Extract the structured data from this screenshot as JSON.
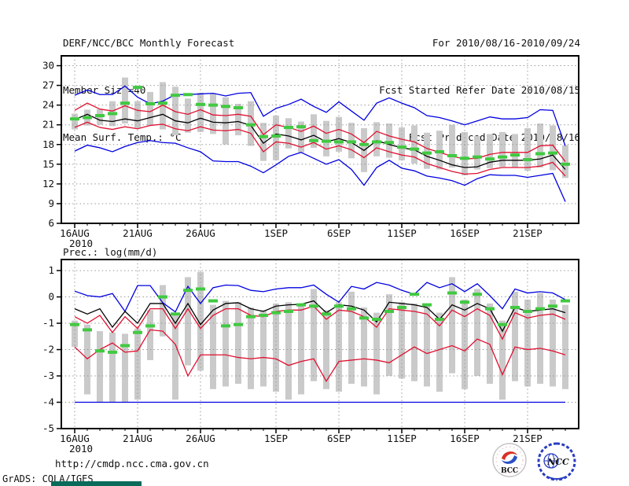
{
  "header": {
    "title": "DERF/NCC/BCC Monthly Forecast",
    "member_size": "Member Size=40",
    "for_range": "For 2010/08/16-2010/09/24",
    "fcst_started": "Fcst Started Refer Date 2010/08/15",
    "fcst_produced": "Fcst Produced Date 2010/08/16"
  },
  "footer": {
    "url": "http://cmdp.ncc.cma.gov.cn",
    "grads_credit": "GrADS: COLA/IGES",
    "accent_bar_color": "#0a6b5a",
    "logos": [
      {
        "name": "bcc-logo",
        "label": "BCC",
        "color": "#1b2d7e",
        "red": "#d93025",
        "blue": "#2b50c5"
      },
      {
        "name": "ncc-logo",
        "label": "NCC",
        "color": "#2a3cc0"
      }
    ]
  },
  "colors": {
    "envelope": "#0000e0",
    "quartile": "#e01030",
    "mean": "#000000",
    "observation": "#41c941",
    "spread_bar": "#cacaca",
    "grid": "#999999",
    "frame": "#000000"
  },
  "chart_data": [
    {
      "type": "line",
      "title": "Mean Surf. Temp.: °C",
      "days": 40,
      "ylim": [
        6,
        31.5
      ],
      "yticks": [
        6,
        9,
        12,
        15,
        18,
        21,
        24,
        27,
        30
      ],
      "grid": true,
      "xticks": [
        {
          "day": 0,
          "label": "16AUG",
          "sublabel": "2010"
        },
        {
          "day": 5,
          "label": "21AUG"
        },
        {
          "day": 10,
          "label": "26AUG"
        },
        {
          "day": 16,
          "label": "1SEP"
        },
        {
          "day": 21,
          "label": "6SEP"
        },
        {
          "day": 26,
          "label": "11SEP"
        },
        {
          "day": 31,
          "label": "16SEP"
        },
        {
          "day": 36,
          "label": "21SEP"
        }
      ],
      "series": [
        {
          "name": "ensemble-max",
          "color": "#0000e0",
          "values": [
            25.5,
            26.3,
            25.6,
            25.6,
            26.9,
            25.2,
            24.2,
            24.6,
            25.6,
            25.6,
            25.7,
            25.8,
            25.4,
            25.8,
            25.9,
            22.3,
            23.5,
            24.1,
            24.9,
            23.8,
            22.9,
            24.5,
            23.1,
            21.7,
            24.3,
            25.1,
            24.3,
            23.6,
            22.4,
            22.1,
            21.6,
            21.0,
            21.6,
            22.2,
            21.9,
            21.9,
            22.1,
            23.3,
            23.2,
            17.8
          ]
        },
        {
          "name": "upper-quartile",
          "color": "#e01030",
          "values": [
            23.2,
            24.3,
            23.4,
            23.1,
            23.9,
            23.2,
            23.0,
            24.0,
            23.0,
            22.6,
            23.3,
            22.5,
            22.4,
            22.6,
            22.3,
            19.5,
            21.0,
            20.6,
            20.0,
            20.8,
            19.7,
            20.3,
            19.6,
            18.3,
            20.0,
            19.3,
            18.8,
            18.4,
            17.4,
            16.8,
            16.2,
            15.8,
            15.9,
            16.5,
            16.8,
            16.8,
            16.8,
            17.8,
            17.9,
            15.4
          ]
        },
        {
          "name": "lower-quartile",
          "color": "#e01030",
          "values": [
            20.6,
            21.4,
            20.6,
            20.3,
            20.7,
            20.4,
            20.9,
            21.1,
            20.4,
            20.1,
            20.7,
            20.2,
            20.1,
            20.3,
            19.7,
            16.9,
            18.4,
            18.2,
            17.6,
            18.3,
            17.3,
            17.8,
            17.2,
            16.0,
            17.5,
            16.9,
            16.4,
            16.1,
            15.1,
            14.5,
            13.9,
            13.5,
            13.6,
            14.2,
            14.5,
            14.5,
            14.5,
            14.7,
            15.3,
            13.2
          ]
        },
        {
          "name": "ensemble-min",
          "color": "#0000e0",
          "values": [
            17.0,
            17.9,
            17.5,
            16.9,
            17.7,
            18.3,
            18.6,
            18.3,
            18.2,
            17.5,
            16.9,
            15.5,
            15.4,
            15.4,
            14.7,
            13.7,
            14.9,
            16.2,
            16.8,
            15.9,
            15.0,
            15.7,
            14.2,
            11.8,
            14.5,
            15.6,
            14.4,
            14.0,
            13.2,
            12.9,
            12.5,
            11.8,
            12.8,
            13.4,
            13.3,
            13.3,
            13.0,
            13.3,
            13.6,
            9.3
          ]
        },
        {
          "name": "ensemble-mean",
          "color": "#000000",
          "values": [
            21.8,
            22.6,
            21.7,
            21.5,
            21.9,
            21.6,
            22.1,
            22.6,
            21.6,
            21.3,
            22.0,
            21.4,
            21.3,
            21.5,
            20.9,
            18.2,
            19.6,
            19.3,
            18.7,
            19.4,
            18.4,
            18.9,
            18.3,
            17.1,
            18.6,
            18.0,
            17.5,
            17.2,
            16.2,
            15.6,
            14.9,
            14.5,
            14.6,
            15.3,
            15.6,
            15.6,
            15.6,
            15.8,
            16.4,
            14.2
          ]
        }
      ],
      "observation": {
        "name": "observation",
        "color": "#41c941",
        "values": [
          21.9,
          22.1,
          22.4,
          22.7,
          24.3,
          26.7,
          24.2,
          24.3,
          25.5,
          25.6,
          24.1,
          24.0,
          23.8,
          23.6,
          21.0,
          19.2,
          19.3,
          20.6,
          20.7,
          18.6,
          18.5,
          18.4,
          18.4,
          18.0,
          18.4,
          18.3,
          17.6,
          17.3,
          16.7,
          16.9,
          16.3,
          15.9,
          16.1,
          15.8,
          16.1,
          16.4,
          15.7,
          16.6,
          16.7,
          15.0
        ]
      },
      "bars": {
        "name": "ensemble-spread",
        "color": "#cacaca",
        "ranges": [
          [
            20.3,
            22.7
          ],
          [
            20.9,
            23.3
          ],
          [
            21.0,
            23.4
          ],
          [
            20.8,
            24.6
          ],
          [
            21.2,
            28.2
          ],
          [
            20.5,
            24.6
          ],
          [
            20.9,
            26.0
          ],
          [
            20.3,
            27.5
          ],
          [
            19.4,
            26.8
          ],
          [
            19.8,
            25.0
          ],
          [
            19.9,
            25.9
          ],
          [
            19.6,
            25.8
          ],
          [
            18.0,
            25.2
          ],
          [
            19.4,
            24.2
          ],
          [
            17.8,
            24.6
          ],
          [
            15.5,
            21.3
          ],
          [
            15.6,
            22.4
          ],
          [
            17.4,
            22.0
          ],
          [
            16.8,
            21.5
          ],
          [
            17.5,
            22.6
          ],
          [
            16.2,
            21.6
          ],
          [
            16.9,
            22.2
          ],
          [
            15.9,
            21.3
          ],
          [
            13.8,
            20.5
          ],
          [
            16.2,
            21.4
          ],
          [
            16.0,
            21.2
          ],
          [
            15.6,
            20.6
          ],
          [
            15.1,
            20.9
          ],
          [
            14.3,
            19.8
          ],
          [
            14.2,
            20.1
          ],
          [
            14.5,
            21.0
          ],
          [
            13.3,
            19.9
          ],
          [
            14.2,
            19.3
          ],
          [
            14.4,
            19.6
          ],
          [
            14.6,
            19.9
          ],
          [
            14.5,
            19.6
          ],
          [
            14.0,
            20.5
          ],
          [
            14.5,
            21.2
          ],
          [
            14.1,
            20.9
          ],
          [
            12.9,
            17.9
          ]
        ]
      }
    },
    {
      "type": "line",
      "title": "Prec.: log(mm/d)",
      "days": 40,
      "ylim": [
        -5,
        1.42
      ],
      "yticks": [
        -5,
        -4,
        -3,
        -2,
        -1,
        0,
        1
      ],
      "grid": true,
      "xticks": [
        {
          "day": 0,
          "label": "16AUG",
          "sublabel": "2010"
        },
        {
          "day": 5,
          "label": "21AUG"
        },
        {
          "day": 10,
          "label": "26AUG"
        },
        {
          "day": 16,
          "label": "1SEP"
        },
        {
          "day": 21,
          "label": "6SEP"
        },
        {
          "day": 26,
          "label": "11SEP"
        },
        {
          "day": 31,
          "label": "16SEP"
        },
        {
          "day": 36,
          "label": "21SEP"
        }
      ],
      "series": [
        {
          "name": "ensemble-max",
          "color": "#0000e0",
          "values": [
            0.22,
            0.05,
            0.0,
            0.13,
            -0.55,
            0.43,
            0.43,
            -0.22,
            -0.57,
            0.4,
            -0.25,
            0.35,
            0.45,
            0.43,
            0.25,
            0.2,
            0.3,
            0.35,
            0.35,
            0.45,
            0.1,
            -0.2,
            0.4,
            0.3,
            0.55,
            0.45,
            0.25,
            0.1,
            0.55,
            0.35,
            0.5,
            0.2,
            0.5,
            0.05,
            -0.45,
            0.3,
            0.15,
            0.2,
            0.15,
            -0.1
          ]
        },
        {
          "name": "upper-quartile",
          "color": "#e01030",
          "values": [
            -0.75,
            -1.0,
            -0.7,
            -1.35,
            -0.75,
            -1.2,
            -0.45,
            -0.45,
            -1.2,
            -0.45,
            -1.2,
            -0.7,
            -0.45,
            -0.45,
            -0.7,
            -0.75,
            -0.55,
            -0.5,
            -0.5,
            -0.35,
            -0.85,
            -0.5,
            -0.55,
            -0.75,
            -1.15,
            -0.45,
            -0.5,
            -0.55,
            -0.65,
            -1.1,
            -0.5,
            -0.75,
            -0.45,
            -0.7,
            -1.6,
            -0.6,
            -0.8,
            -0.7,
            -0.65,
            -0.85
          ]
        },
        {
          "name": "lower-quartile",
          "color": "#e01030",
          "values": [
            -1.9,
            -2.35,
            -2.0,
            -1.75,
            -2.1,
            -2.05,
            -1.25,
            -1.3,
            -1.8,
            -3.0,
            -2.2,
            -2.2,
            -2.2,
            -2.3,
            -2.35,
            -2.3,
            -2.35,
            -2.6,
            -2.45,
            -2.35,
            -3.2,
            -2.45,
            -2.4,
            -2.35,
            -2.4,
            -2.5,
            -2.2,
            -1.9,
            -2.15,
            -2.0,
            -1.85,
            -2.05,
            -1.6,
            -1.8,
            -2.95,
            -1.9,
            -2.0,
            -1.95,
            -2.05,
            -2.2
          ]
        },
        {
          "name": "ensemble-min",
          "color": "#0000e0",
          "values": [
            -4.0,
            -4.0,
            -4.0,
            -4.0,
            -4.0,
            -4.0,
            -4.0,
            -4.0,
            -4.0,
            -4.0,
            -4.0,
            -4.0,
            -4.0,
            -4.0,
            -4.0,
            -4.0,
            -4.0,
            -4.0,
            -4.0,
            -4.0,
            -4.0,
            -4.0,
            -4.0,
            -4.0,
            -4.0,
            -4.0,
            -4.0,
            -4.0,
            -4.0,
            -4.0,
            -4.0,
            -4.0,
            -4.0,
            -4.0,
            -4.0,
            -4.0,
            -4.0,
            -4.0,
            -4.0,
            -4.0
          ]
        },
        {
          "name": "ensemble-mean",
          "color": "#000000",
          "values": [
            -0.45,
            -0.65,
            -0.45,
            -1.15,
            -0.55,
            -1.0,
            -0.25,
            -0.25,
            -1.0,
            -0.25,
            -1.05,
            -0.5,
            -0.25,
            -0.22,
            -0.45,
            -0.55,
            -0.35,
            -0.3,
            -0.28,
            -0.15,
            -0.6,
            -0.3,
            -0.35,
            -0.5,
            -0.95,
            -0.2,
            -0.25,
            -0.3,
            -0.4,
            -0.85,
            -0.3,
            -0.5,
            -0.25,
            -0.45,
            -1.3,
            -0.4,
            -0.55,
            -0.5,
            -0.45,
            -0.6
          ]
        }
      ],
      "observation": {
        "name": "observation",
        "color": "#41c941",
        "values": [
          -1.05,
          -1.25,
          -2.05,
          -2.1,
          -1.85,
          -1.35,
          -1.1,
          0.0,
          -0.65,
          0.25,
          0.3,
          -0.15,
          -1.1,
          -1.05,
          -0.75,
          -0.7,
          -0.6,
          -0.55,
          -0.3,
          -0.35,
          -0.65,
          -0.35,
          -0.45,
          -0.8,
          -0.85,
          -0.55,
          -0.4,
          0.1,
          -0.3,
          -0.85,
          0.15,
          -0.2,
          0.1,
          -0.45,
          -1.05,
          -0.4,
          -0.55,
          -0.45,
          -0.35,
          -0.15
        ]
      },
      "bars": {
        "name": "ensemble-spread",
        "color": "#cacaca",
        "ranges": [
          [
            -1.9,
            -0.9
          ],
          [
            -3.7,
            -1.05
          ],
          [
            -4.0,
            -1.3
          ],
          [
            -4.0,
            -1.35
          ],
          [
            -4.0,
            -1.4
          ],
          [
            -3.9,
            -1.2
          ],
          [
            -2.4,
            -0.5
          ],
          [
            -1.5,
            0.45
          ],
          [
            -3.9,
            -0.6
          ],
          [
            -2.6,
            0.75
          ],
          [
            -2.8,
            0.95
          ],
          [
            -3.5,
            -0.3
          ],
          [
            -3.4,
            -0.15
          ],
          [
            -3.3,
            -0.2
          ],
          [
            -3.5,
            -0.4
          ],
          [
            -3.4,
            -0.5
          ],
          [
            -3.6,
            -0.25
          ],
          [
            -3.9,
            -0.2
          ],
          [
            -3.7,
            -0.3
          ],
          [
            -3.2,
            0.3
          ],
          [
            -3.5,
            -0.5
          ],
          [
            -3.6,
            -0.2
          ],
          [
            -3.3,
            0.2
          ],
          [
            -3.4,
            -0.4
          ],
          [
            -3.7,
            -0.6
          ],
          [
            -3.0,
            0.1
          ],
          [
            -3.1,
            -0.2
          ],
          [
            -3.2,
            -0.25
          ],
          [
            -3.4,
            -0.35
          ],
          [
            -3.6,
            -0.6
          ],
          [
            -2.9,
            0.75
          ],
          [
            -3.5,
            -0.1
          ],
          [
            -3.0,
            0.3
          ],
          [
            -3.3,
            -0.25
          ],
          [
            -3.9,
            -0.9
          ],
          [
            -3.2,
            0.2
          ],
          [
            -3.4,
            -0.1
          ],
          [
            -3.3,
            0.15
          ],
          [
            -3.4,
            -0.1
          ],
          [
            -3.5,
            -0.3
          ]
        ]
      }
    }
  ]
}
